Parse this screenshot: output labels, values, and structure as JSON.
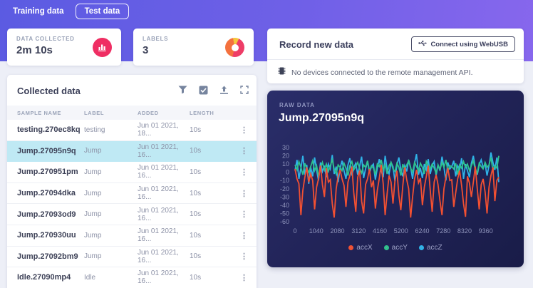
{
  "tabs": {
    "training": "Training data",
    "test": "Test data"
  },
  "stats": {
    "collected": {
      "label": "DATA COLLECTED",
      "value": "2m 10s"
    },
    "labels": {
      "label": "LABELS",
      "value": "3"
    }
  },
  "record": {
    "title": "Record new data",
    "connect_label": "Connect using WebUSB",
    "empty_message": "No devices connected to the remote management API."
  },
  "collected_table": {
    "title": "Collected data",
    "columns": [
      "SAMPLE NAME",
      "LABEL",
      "ADDED",
      "LENGTH"
    ],
    "rows": [
      {
        "name": "testing.270ec8kq",
        "label": "testing",
        "added": "Jun 01 2021, 18...",
        "length": "10s",
        "selected": false
      },
      {
        "name": "Jump.27095n9q",
        "label": "Jump",
        "added": "Jun 01 2021, 16...",
        "length": "10s",
        "selected": true
      },
      {
        "name": "Jump.270951pm",
        "label": "Jump",
        "added": "Jun 01 2021, 16...",
        "length": "10s",
        "selected": false
      },
      {
        "name": "Jump.27094dka",
        "label": "Jump",
        "added": "Jun 01 2021, 16...",
        "length": "10s",
        "selected": false
      },
      {
        "name": "Jump.27093od9",
        "label": "Jump",
        "added": "Jun 01 2021, 16...",
        "length": "10s",
        "selected": false
      },
      {
        "name": "Jump.270930uu",
        "label": "Jump",
        "added": "Jun 01 2021, 16...",
        "length": "10s",
        "selected": false
      },
      {
        "name": "Jump.27092bm9",
        "label": "Jump",
        "added": "Jun 01 2021, 16...",
        "length": "10s",
        "selected": false
      },
      {
        "name": "Idle.27090mp4",
        "label": "Idle",
        "added": "Jun 01 2021, 16...",
        "length": "10s",
        "selected": false
      }
    ]
  },
  "raw_panel": {
    "overline": "RAW DATA",
    "title": "Jump.27095n9q"
  },
  "chart_data": {
    "type": "line",
    "title": "Jump.27095n9q",
    "xlabel": "",
    "ylabel": "",
    "xlim": [
      0,
      10000
    ],
    "ylim": [
      -60,
      30
    ],
    "yticks": [
      30,
      20,
      10,
      0,
      -10,
      -20,
      -30,
      -40,
      -50,
      -60
    ],
    "xticks": [
      0,
      1040,
      2080,
      3120,
      4160,
      5200,
      6240,
      7280,
      8320,
      9360
    ],
    "grid": false,
    "legend_position": "bottom",
    "series": [
      {
        "name": "accX",
        "color": "#f25032",
        "values": [
          4,
          -8,
          -14,
          -52,
          -22,
          -6,
          6,
          -12,
          -2,
          -10,
          -45,
          -18,
          -8,
          8,
          -15,
          -30,
          5,
          -12,
          -9,
          -38,
          -55,
          -20,
          -5,
          3,
          -8,
          -16,
          -42,
          -12,
          -4,
          7,
          -25,
          -48,
          -6,
          2,
          -35,
          -50,
          -15,
          -8,
          4,
          -18,
          -10,
          -44,
          -22,
          -7,
          9,
          -14,
          -52,
          -26,
          -4,
          -12,
          -38,
          -10,
          2,
          -28,
          -46,
          -16,
          6,
          -9,
          -20,
          -55,
          -30,
          -8,
          3,
          -13,
          -7,
          -40,
          -18,
          -5,
          8,
          -22,
          -48,
          -12,
          -3,
          -15,
          -35,
          -52,
          -20,
          -6,
          5,
          -10,
          -9,
          -42,
          -25,
          -8,
          2,
          -16,
          -38,
          -54,
          -5,
          -13,
          -30,
          -12,
          7,
          -20,
          -45,
          -15,
          -8,
          -24,
          -50,
          -18,
          -4,
          6,
          -35,
          -10,
          -6
        ]
      },
      {
        "name": "accY",
        "color": "#2fc28c",
        "values": [
          9,
          3,
          13,
          6,
          -3,
          11,
          4,
          0,
          7,
          14,
          2,
          8,
          -5,
          5,
          12,
          3,
          10,
          1,
          8,
          15,
          4,
          -2,
          9,
          6,
          2,
          11,
          5,
          -4,
          8,
          13,
          3,
          7,
          12,
          4,
          -1,
          9,
          6,
          14,
          2,
          8,
          5,
          -3,
          10,
          7,
          15,
          3,
          9,
          -2,
          8,
          12,
          4,
          1,
          11,
          6,
          -4,
          10,
          3,
          9,
          14,
          5,
          0,
          12,
          7,
          2,
          11,
          6,
          -2,
          13,
          8,
          4,
          10,
          5,
          -1,
          9,
          3,
          12,
          6,
          15,
          2,
          8,
          7,
          4,
          11,
          -3,
          9,
          5,
          13,
          6,
          10,
          2,
          8,
          14,
          3,
          -1,
          11,
          7,
          4,
          12,
          6,
          9,
          18,
          2,
          8,
          5,
          20
        ]
      },
      {
        "name": "accZ",
        "color": "#2fb3e8",
        "values": [
          2,
          15,
          -8,
          5,
          20,
          -3,
          9,
          -14,
          6,
          -5,
          18,
          3,
          -10,
          12,
          1,
          8,
          -6,
          10,
          4,
          21,
          -2,
          7,
          -12,
          5,
          14,
          2,
          -8,
          9,
          17,
          -4,
          6,
          11,
          -3,
          8,
          19,
          -7,
          4,
          13,
          -1,
          7,
          10,
          -9,
          5,
          16,
          2,
          -6,
          20,
          4,
          -2,
          12,
          7,
          -11,
          9,
          18,
          3,
          -5,
          8,
          1,
          15,
          6,
          -8,
          11,
          22,
          -3,
          5,
          -7,
          10,
          3,
          16,
          -2,
          8,
          13,
          -4,
          9,
          2,
          19,
          6,
          -10,
          12,
          4,
          7,
          14,
          -5,
          8,
          3,
          17,
          -8,
          10,
          2,
          -6,
          11,
          20,
          5,
          -3,
          9,
          15,
          6,
          10,
          -4,
          8,
          24,
          12,
          3,
          18,
          -12
        ]
      }
    ]
  },
  "colors": {
    "accent_purple": "#6c5ce7",
    "selected_row": "#bfe9f4",
    "stat_icon_pink": "#ef2e63",
    "panel_navy": "#1e2152"
  }
}
